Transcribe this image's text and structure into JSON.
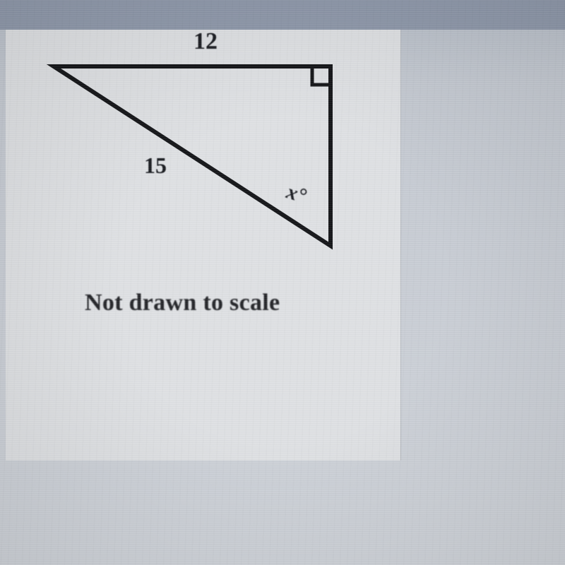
{
  "diagram": {
    "type": "right-triangle",
    "vertices": {
      "A": [
        40,
        52
      ],
      "B": [
        432,
        52
      ],
      "C": [
        432,
        306
      ]
    },
    "stroke_width": 6,
    "stroke_color": "#141518",
    "right_angle_marker": {
      "at": "B",
      "size": 26
    },
    "labels": {
      "top_side": "12",
      "hypotenuse": "15",
      "angle_at_C": "x°"
    },
    "label_fontsize": 34,
    "label_color": "#1a1c21",
    "caption": "Not drawn to scale",
    "caption_fontsize": 34
  },
  "colors": {
    "page_bg": "#c8cdd4",
    "top_band": "#8f99ab",
    "panel_bg": "#dfe1e4",
    "panel_border": "#b8bcc2"
  }
}
